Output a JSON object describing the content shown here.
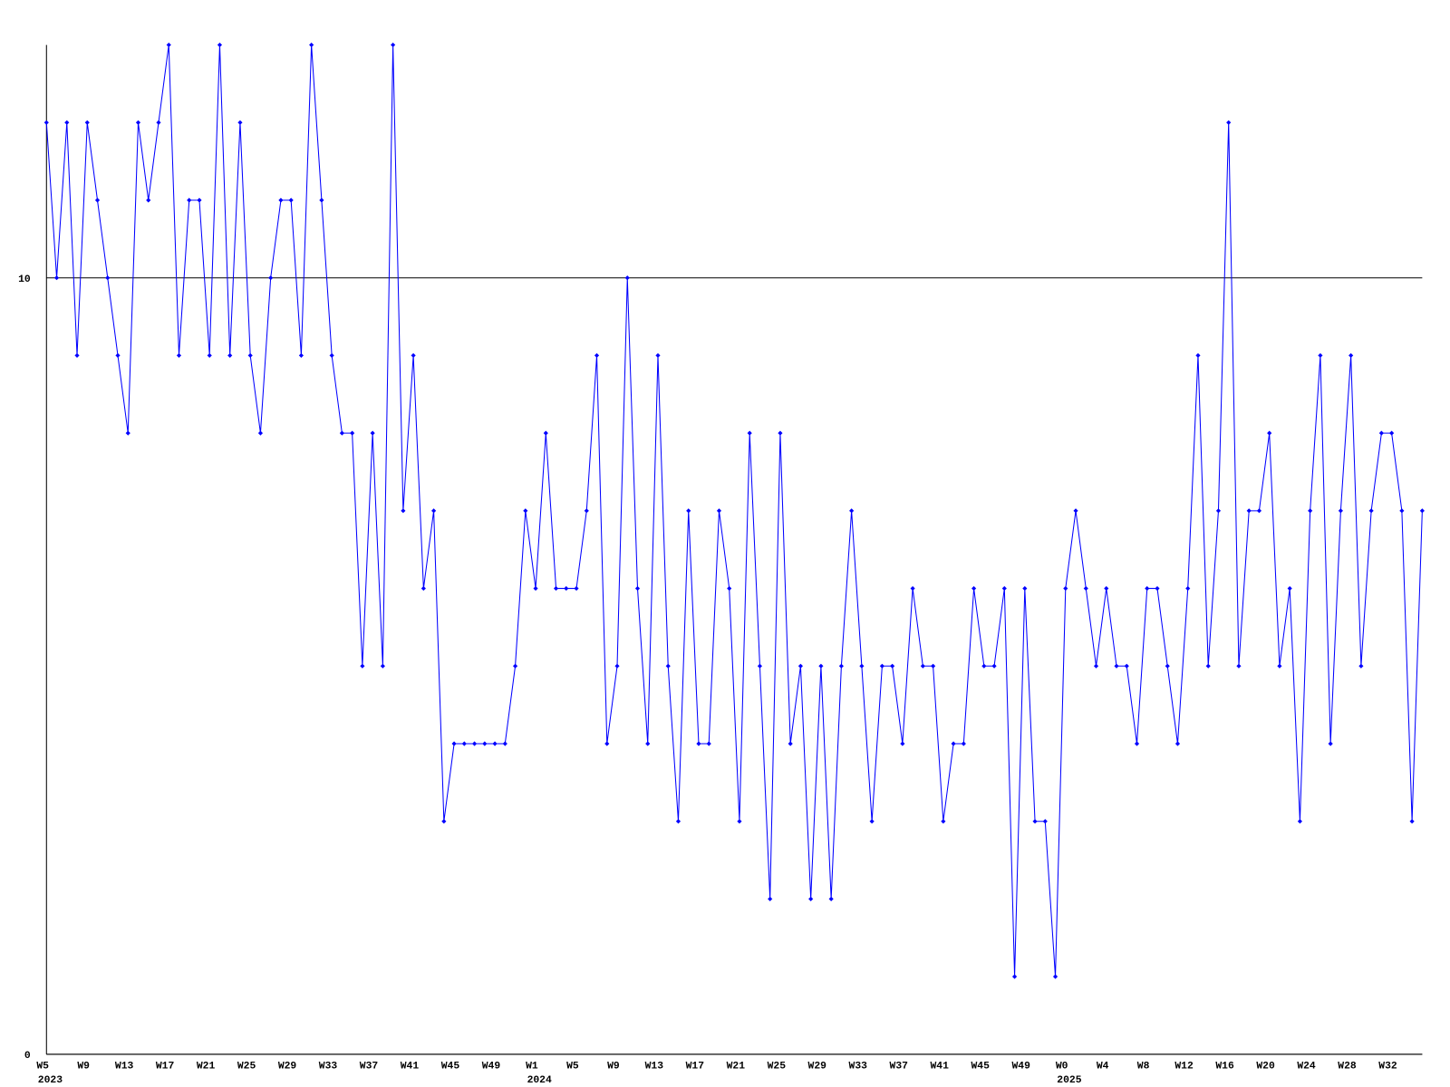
{
  "chart_data": {
    "type": "line",
    "categories": [
      "W5",
      null,
      null,
      null,
      "W9",
      null,
      null,
      null,
      "W13",
      null,
      null,
      null,
      "W17",
      null,
      null,
      null,
      "W21",
      null,
      null,
      null,
      "W25",
      null,
      null,
      null,
      "W29",
      null,
      null,
      null,
      "W33",
      null,
      null,
      null,
      "W37",
      null,
      null,
      null,
      "W41",
      null,
      null,
      null,
      "W45",
      null,
      null,
      null,
      "W49",
      null,
      null,
      null,
      "W1",
      null,
      null,
      null,
      "W5",
      null,
      null,
      null,
      "W9",
      null,
      null,
      null,
      "W13",
      null,
      null,
      null,
      "W17",
      null,
      null,
      null,
      "W21",
      null,
      null,
      null,
      "W25",
      null,
      null,
      null,
      "W29",
      null,
      null,
      null,
      "W33",
      null,
      null,
      null,
      "W37",
      null,
      null,
      null,
      "W41",
      null,
      null,
      null,
      "W45",
      null,
      null,
      null,
      "W49",
      null,
      null,
      null,
      "W0",
      null,
      null,
      null,
      "W4",
      null,
      null,
      null,
      "W8",
      null,
      null,
      null,
      "W12",
      null,
      null,
      null,
      "W16",
      null,
      null,
      null,
      "W20",
      null,
      null,
      null,
      "W24",
      null,
      null,
      null,
      "W28",
      null,
      null,
      null,
      "W32",
      null,
      null,
      null
    ],
    "year_labels": [
      "2023",
      null,
      null,
      null,
      null,
      null,
      null,
      null,
      null,
      null,
      null,
      null,
      null,
      null,
      null,
      null,
      null,
      null,
      null,
      null,
      null,
      null,
      null,
      null,
      null,
      null,
      null,
      null,
      null,
      null,
      null,
      null,
      null,
      null,
      null,
      null,
      null,
      null,
      null,
      null,
      null,
      null,
      null,
      null,
      null,
      null,
      null,
      null,
      "2024",
      null,
      null,
      null,
      null,
      null,
      null,
      null,
      null,
      null,
      null,
      null,
      null,
      null,
      null,
      null,
      null,
      null,
      null,
      null,
      null,
      null,
      null,
      null,
      null,
      null,
      null,
      null,
      null,
      null,
      null,
      null,
      null,
      null,
      null,
      null,
      null,
      null,
      null,
      null,
      null,
      null,
      null,
      null,
      null,
      null,
      null,
      null,
      null,
      null,
      null,
      null,
      "2025",
      null,
      null,
      null,
      null,
      null,
      null,
      null,
      null,
      null,
      null,
      null,
      null,
      null,
      null,
      null,
      null,
      null,
      null,
      null,
      null,
      null,
      null,
      null,
      null,
      null,
      null,
      null,
      null,
      null,
      null,
      null,
      null,
      null,
      null,
      null
    ],
    "series": [
      {
        "color": "#0000ff",
        "values": [
          12,
          10,
          12,
          9,
          12,
          11,
          10,
          9,
          8,
          12,
          11,
          12,
          13,
          9,
          11,
          11,
          9,
          13,
          9,
          12,
          9,
          8,
          10,
          11,
          11,
          9,
          13,
          11,
          9,
          8,
          8,
          5,
          8,
          5,
          13,
          7,
          9,
          6,
          7,
          3,
          4,
          4,
          4,
          4,
          4,
          4,
          5,
          7,
          6,
          8,
          6,
          6,
          6,
          7,
          9,
          4,
          5,
          10,
          6,
          4,
          9,
          5,
          3,
          7,
          4,
          4,
          7,
          6,
          3,
          8,
          5,
          2,
          8,
          4,
          5,
          2,
          5,
          2,
          5,
          7,
          5,
          3,
          5,
          5,
          4,
          6,
          5,
          5,
          3,
          4,
          4,
          6,
          5,
          5,
          6,
          1,
          6,
          3,
          3,
          1,
          6,
          7,
          6,
          5,
          6,
          5,
          5,
          4,
          6,
          6,
          5,
          4,
          6,
          9,
          5,
          7,
          12,
          5,
          7,
          7,
          8,
          5,
          6,
          3,
          7,
          9,
          4,
          7,
          9,
          5,
          7,
          8,
          8,
          7,
          3,
          7
        ]
      }
    ],
    "ylim": [
      0,
      13
    ],
    "yticks": [
      0,
      10
    ],
    "grid": true
  }
}
